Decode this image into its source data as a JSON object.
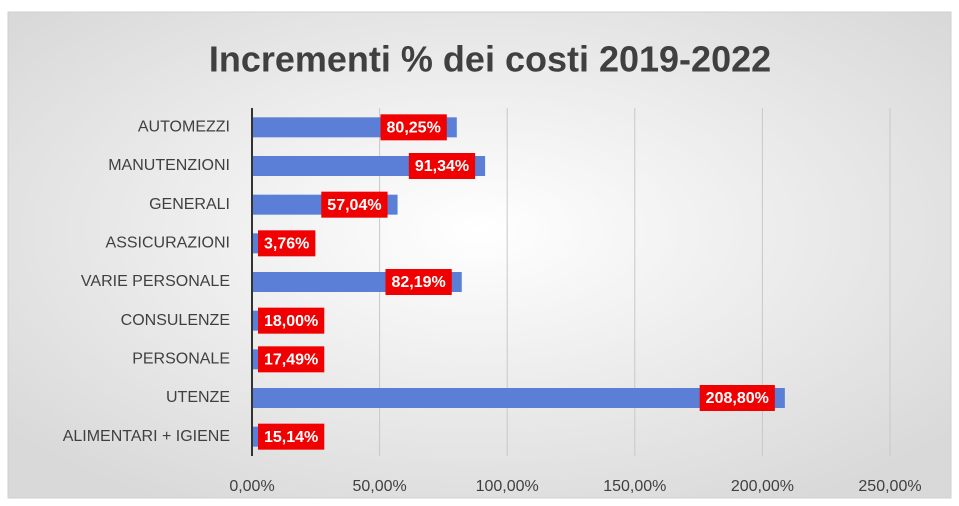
{
  "chart_data": {
    "type": "barh",
    "title": "Incrementi % dei costi 2019-2022",
    "categories": [
      "AUTOMEZZI",
      "MANUTENZIONI",
      "GENERALI",
      "ASSICURAZIONI",
      "VARIE PERSONALE",
      "CONSULENZE",
      "PERSONALE",
      "UTENZE",
      "ALIMENTARI + IGIENE"
    ],
    "values": [
      80.25,
      91.34,
      57.04,
      3.76,
      82.19,
      18.0,
      17.49,
      208.8,
      15.14
    ],
    "value_labels": [
      "80,25%",
      "91,34%",
      "57,04%",
      "3,76%",
      "82,19%",
      "18,00%",
      "17,49%",
      "208,80%",
      "15,14%"
    ],
    "color": "#5b7fd6",
    "label_color": "#f00000",
    "xlim": [
      0,
      250
    ],
    "xticks": [
      {
        "value": 0,
        "label": "0,00%"
      },
      {
        "value": 50,
        "label": "50,00%"
      },
      {
        "value": 100,
        "label": "100,00%"
      },
      {
        "value": 150,
        "label": "150,00%"
      },
      {
        "value": 200,
        "label": "200,00%"
      },
      {
        "value": 250,
        "label": "250,00%"
      }
    ],
    "grid": true
  }
}
